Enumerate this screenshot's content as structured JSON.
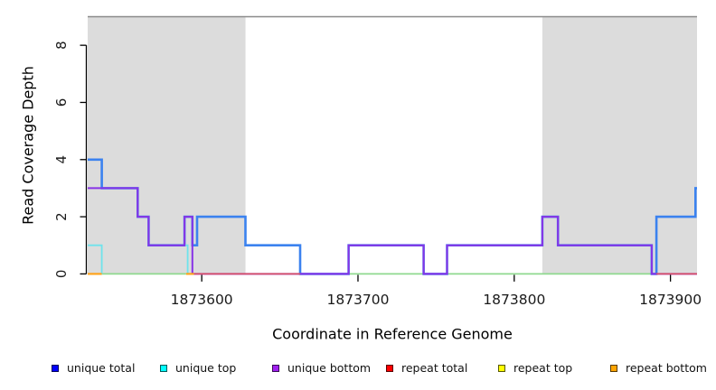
{
  "chart_data": {
    "type": "line",
    "subtype": "step-coverage-plot",
    "title": "",
    "xlabel": "Coordinate in Reference Genome",
    "ylabel": "Read Coverage Depth",
    "xlim": [
      1873527,
      1873917
    ],
    "ylim": [
      0,
      9
    ],
    "grid": false,
    "x_ticks": [
      1873600,
      1873700,
      1873800,
      1873900
    ],
    "x_tick_labels": [
      "1873600",
      "1873700",
      "1873800",
      "1873900"
    ],
    "y_ticks": [
      0,
      2,
      4,
      6,
      8
    ],
    "y_tick_labels": [
      "0",
      "2",
      "4",
      "6",
      "8"
    ],
    "plot_top_border_color": "#8A8A8A",
    "axis_color": "#000000",
    "shaded_regions": [
      {
        "x0": 1873527,
        "x1": 1873628,
        "color": "#DCDCDC"
      },
      {
        "x0": 1873818,
        "x1": 1873917,
        "color": "#DCDCDC"
      }
    ],
    "baseline_segments": [
      {
        "x0": 1873536,
        "x1": 1873590,
        "y": 0,
        "color": "#8FD98F"
      },
      {
        "x0": 1873694,
        "x1": 1873888,
        "y": 0,
        "color": "#8FD98F"
      }
    ],
    "series": [
      {
        "name": "unique total",
        "color": "#3B82EF",
        "line_width": 2.6,
        "paths": [
          [
            [
              1873527,
              4
            ],
            [
              1873536,
              4
            ],
            [
              1873536,
              3
            ],
            [
              1873559,
              3
            ],
            [
              1873559,
              2
            ],
            [
              1873566,
              2
            ],
            [
              1873566,
              1
            ],
            [
              1873589,
              1
            ],
            [
              1873589,
              2
            ],
            [
              1873594,
              2
            ],
            [
              1873594,
              1
            ],
            [
              1873597,
              1
            ],
            [
              1873597,
              2
            ],
            [
              1873628,
              2
            ],
            [
              1873628,
              1
            ],
            [
              1873663,
              1
            ],
            [
              1873663,
              0
            ],
            [
              1873694,
              0
            ],
            [
              1873694,
              1
            ],
            [
              1873742,
              1
            ],
            [
              1873742,
              0
            ],
            [
              1873757,
              0
            ],
            [
              1873757,
              1
            ],
            [
              1873818,
              1
            ],
            [
              1873818,
              2
            ],
            [
              1873828,
              2
            ],
            [
              1873828,
              1
            ],
            [
              1873888,
              1
            ],
            [
              1873888,
              0
            ],
            [
              1873891,
              0
            ],
            [
              1873891,
              2
            ],
            [
              1873916,
              2
            ],
            [
              1873916,
              3
            ],
            [
              1873917,
              3
            ]
          ]
        ]
      },
      {
        "name": "unique top",
        "color": "#6FE3EC",
        "line_width": 1.8,
        "paths": [
          [
            [
              1873527,
              1
            ],
            [
              1873536,
              1
            ],
            [
              1873536,
              0
            ]
          ],
          [
            [
              1873589,
              1
            ],
            [
              1873591,
              1
            ],
            [
              1873591,
              0
            ]
          ]
        ]
      },
      {
        "name": "unique bottom",
        "color": "#8833E6",
        "line_width": 2,
        "paths": [
          [
            [
              1873527,
              3
            ],
            [
              1873559,
              3
            ],
            [
              1873559,
              2
            ],
            [
              1873566,
              2
            ],
            [
              1873566,
              1
            ],
            [
              1873589,
              1
            ],
            [
              1873589,
              2
            ],
            [
              1873594,
              2
            ],
            [
              1873594,
              0
            ],
            [
              1873694,
              0
            ],
            [
              1873694,
              1
            ],
            [
              1873742,
              1
            ],
            [
              1873742,
              0
            ],
            [
              1873757,
              0
            ],
            [
              1873757,
              1
            ],
            [
              1873818,
              1
            ],
            [
              1873818,
              2
            ],
            [
              1873828,
              2
            ],
            [
              1873828,
              1
            ],
            [
              1873888,
              1
            ],
            [
              1873888,
              0
            ],
            [
              1873917,
              0
            ]
          ]
        ]
      },
      {
        "name": "repeat total",
        "color": "#D85065",
        "line_width": 1.8,
        "paths": [
          [
            [
              1873595,
              0
            ],
            [
              1873663,
              0
            ]
          ],
          [
            [
              1873891,
              0
            ],
            [
              1873917,
              0
            ]
          ]
        ]
      },
      {
        "name": "repeat top",
        "color": "#FFFF00",
        "line_width": 1.8,
        "paths": []
      },
      {
        "name": "repeat bottom",
        "color": "#FFA41C",
        "line_width": 2.2,
        "paths": [
          [
            [
              1873527,
              0
            ],
            [
              1873536,
              0
            ]
          ],
          [
            [
              1873590,
              0
            ],
            [
              1873595,
              0
            ]
          ]
        ]
      }
    ]
  },
  "legend": {
    "items": [
      {
        "label": "unique total",
        "color": "#0000FF"
      },
      {
        "label": "unique top",
        "color": "#00FFFF"
      },
      {
        "label": "unique bottom",
        "color": "#A020F0"
      },
      {
        "label": "repeat total",
        "color": "#FF0000"
      },
      {
        "label": "repeat top",
        "color": "#FFFF00"
      },
      {
        "label": "repeat bottom",
        "color": "#FFA500"
      }
    ]
  }
}
